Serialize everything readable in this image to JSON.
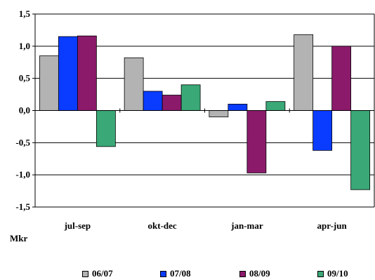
{
  "chart_data": {
    "type": "bar",
    "categories": [
      "jul-sep",
      "okt-dec",
      "jan-mar",
      "apr-jun"
    ],
    "series": [
      {
        "name": "06/07",
        "color": "#b3b3b3",
        "values": [
          0.85,
          0.82,
          -0.1,
          1.18
        ]
      },
      {
        "name": "07/08",
        "color": "#0a3cff",
        "values": [
          1.15,
          0.3,
          0.1,
          -0.62
        ]
      },
      {
        "name": "08/09",
        "color": "#8b1a6b",
        "values": [
          1.16,
          0.24,
          -0.97,
          1.0
        ]
      },
      {
        "name": "09/10",
        "color": "#3aa877",
        "values": [
          -0.56,
          0.4,
          0.14,
          -1.23
        ]
      }
    ],
    "ylim": [
      -1.5,
      1.5
    ],
    "yticks": [
      "1,5",
      "1,0",
      "0,5",
      "0,0",
      "-0,5",
      "-1,0",
      "-1,5"
    ],
    "ylabel": "Mkr",
    "grid": true,
    "legend": "bottom"
  }
}
